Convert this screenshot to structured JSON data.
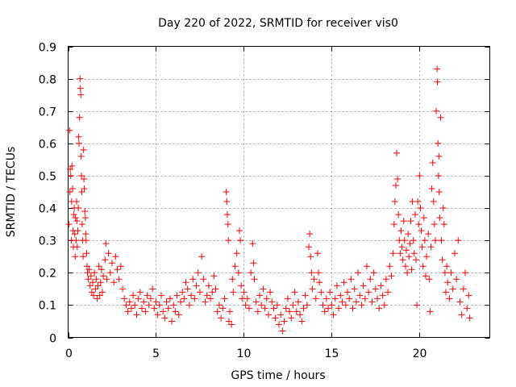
{
  "chart_data": {
    "type": "scatter",
    "title": "Day 220 of 2022, SRMTID for receiver vis0",
    "xlabel": "GPS time / hours",
    "ylabel": "SRMTID / TECUs",
    "xlim": [
      0,
      24
    ],
    "ylim": [
      0,
      0.9
    ],
    "x_ticks": [
      "0",
      "5",
      "10",
      "15",
      "20"
    ],
    "x_tick_values": [
      0,
      5,
      10,
      15,
      20
    ],
    "y_ticks": [
      "0",
      "0.1",
      "0.2",
      "0.3",
      "0.4",
      "0.5",
      "0.6",
      "0.7",
      "0.8",
      "0.9"
    ],
    "y_tick_values": [
      0,
      0.1,
      0.2,
      0.3,
      0.4,
      0.5,
      0.6,
      0.7,
      0.8,
      0.9
    ],
    "grid": true,
    "marker": "plus",
    "series": [
      {
        "name": "vis0",
        "color": "#ff0000",
        "points": [
          [
            0.05,
            0.35
          ],
          [
            0.08,
            0.64
          ],
          [
            0.1,
            0.45
          ],
          [
            0.12,
            0.52
          ],
          [
            0.15,
            0.5
          ],
          [
            0.18,
            0.3
          ],
          [
            0.2,
            0.42
          ],
          [
            0.22,
            0.53
          ],
          [
            0.25,
            0.46
          ],
          [
            0.28,
            0.33
          ],
          [
            0.3,
            0.28
          ],
          [
            0.33,
            0.38
          ],
          [
            0.35,
            0.4
          ],
          [
            0.38,
            0.32
          ],
          [
            0.4,
            0.25
          ],
          [
            0.42,
            0.37
          ],
          [
            0.45,
            0.3
          ],
          [
            0.48,
            0.42
          ],
          [
            0.5,
            0.36
          ],
          [
            0.52,
            0.28
          ],
          [
            0.55,
            0.33
          ],
          [
            0.58,
            0.4
          ],
          [
            0.6,
            0.62
          ],
          [
            0.62,
            0.6
          ],
          [
            0.65,
            0.68
          ],
          [
            0.68,
            0.8
          ],
          [
            0.7,
            0.77
          ],
          [
            0.72,
            0.75
          ],
          [
            0.74,
            0.56
          ],
          [
            0.76,
            0.5
          ],
          [
            0.78,
            0.45
          ],
          [
            0.8,
            0.35
          ],
          [
            0.82,
            0.3
          ],
          [
            0.85,
            0.25
          ],
          [
            0.88,
            0.58
          ],
          [
            0.9,
            0.49
          ],
          [
            0.92,
            0.46
          ],
          [
            0.95,
            0.39
          ],
          [
            0.98,
            0.37
          ],
          [
            1.0,
            0.32
          ],
          [
            1.02,
            0.3
          ],
          [
            1.05,
            0.26
          ],
          [
            1.08,
            0.22
          ],
          [
            1.1,
            0.2
          ],
          [
            1.15,
            0.18
          ],
          [
            1.2,
            0.21
          ],
          [
            1.25,
            0.16
          ],
          [
            1.3,
            0.19
          ],
          [
            1.35,
            0.14
          ],
          [
            1.4,
            0.17
          ],
          [
            1.45,
            0.13
          ],
          [
            1.5,
            0.2
          ],
          [
            1.55,
            0.15
          ],
          [
            1.6,
            0.18
          ],
          [
            1.65,
            0.12
          ],
          [
            1.7,
            0.16
          ],
          [
            1.75,
            0.22
          ],
          [
            1.8,
            0.13
          ],
          [
            1.85,
            0.17
          ],
          [
            1.9,
            0.21
          ],
          [
            1.95,
            0.14
          ],
          [
            2.0,
            0.19
          ],
          [
            2.1,
            0.24
          ],
          [
            2.15,
            0.29
          ],
          [
            2.2,
            0.18
          ],
          [
            2.3,
            0.26
          ],
          [
            2.4,
            0.2
          ],
          [
            2.5,
            0.23
          ],
          [
            2.6,
            0.17
          ],
          [
            2.7,
            0.25
          ],
          [
            2.8,
            0.21
          ],
          [
            2.9,
            0.18
          ],
          [
            3.0,
            0.22
          ],
          [
            3.1,
            0.15
          ],
          [
            3.2,
            0.12
          ],
          [
            3.3,
            0.1
          ],
          [
            3.4,
            0.08
          ],
          [
            3.5,
            0.11
          ],
          [
            3.6,
            0.09
          ],
          [
            3.7,
            0.13
          ],
          [
            3.8,
            0.1
          ],
          [
            3.9,
            0.07
          ],
          [
            4.0,
            0.12
          ],
          [
            4.1,
            0.14
          ],
          [
            4.2,
            0.09
          ],
          [
            4.3,
            0.11
          ],
          [
            4.4,
            0.08
          ],
          [
            4.5,
            0.13
          ],
          [
            4.6,
            0.1
          ],
          [
            4.7,
            0.12
          ],
          [
            4.8,
            0.15
          ],
          [
            4.9,
            0.09
          ],
          [
            5.0,
            0.11
          ],
          [
            5.1,
            0.07
          ],
          [
            5.2,
            0.1
          ],
          [
            5.3,
            0.13
          ],
          [
            5.4,
            0.08
          ],
          [
            5.5,
            0.06
          ],
          [
            5.6,
            0.11
          ],
          [
            5.7,
            0.09
          ],
          [
            5.8,
            0.12
          ],
          [
            5.9,
            0.05
          ],
          [
            6.0,
            0.1
          ],
          [
            6.1,
            0.08
          ],
          [
            6.2,
            0.13
          ],
          [
            6.3,
            0.07
          ],
          [
            6.4,
            0.11
          ],
          [
            6.5,
            0.14
          ],
          [
            6.6,
            0.12
          ],
          [
            6.7,
            0.17
          ],
          [
            6.8,
            0.15
          ],
          [
            6.9,
            0.1
          ],
          [
            7.0,
            0.13
          ],
          [
            7.1,
            0.18
          ],
          [
            7.2,
            0.12
          ],
          [
            7.3,
            0.16
          ],
          [
            7.4,
            0.2
          ],
          [
            7.5,
            0.14
          ],
          [
            7.6,
            0.25
          ],
          [
            7.7,
            0.18
          ],
          [
            7.8,
            0.11
          ],
          [
            7.9,
            0.13
          ],
          [
            8.0,
            0.16
          ],
          [
            8.1,
            0.12
          ],
          [
            8.2,
            0.14
          ],
          [
            8.3,
            0.19
          ],
          [
            8.4,
            0.15
          ],
          [
            8.5,
            0.08
          ],
          [
            8.6,
            0.1
          ],
          [
            8.7,
            0.06
          ],
          [
            8.8,
            0.09
          ],
          [
            8.9,
            0.12
          ],
          [
            9.0,
            0.45
          ],
          [
            9.03,
            0.42
          ],
          [
            9.06,
            0.38
          ],
          [
            9.1,
            0.35
          ],
          [
            9.12,
            0.3
          ],
          [
            9.15,
            0.05
          ],
          [
            9.2,
            0.08
          ],
          [
            9.3,
            0.04
          ],
          [
            9.35,
            0.18
          ],
          [
            9.4,
            0.14
          ],
          [
            9.5,
            0.22
          ],
          [
            9.6,
            0.26
          ],
          [
            9.7,
            0.2
          ],
          [
            9.75,
            0.33
          ],
          [
            9.8,
            0.3
          ],
          [
            9.85,
            0.16
          ],
          [
            9.9,
            0.12
          ],
          [
            10.0,
            0.14
          ],
          [
            10.1,
            0.1
          ],
          [
            10.2,
            0.12
          ],
          [
            10.3,
            0.09
          ],
          [
            10.4,
            0.2
          ],
          [
            10.5,
            0.29
          ],
          [
            10.55,
            0.23
          ],
          [
            10.6,
            0.18
          ],
          [
            10.7,
            0.11
          ],
          [
            10.8,
            0.08
          ],
          [
            10.9,
            0.13
          ],
          [
            11.0,
            0.1
          ],
          [
            11.1,
            0.15
          ],
          [
            11.2,
            0.09
          ],
          [
            11.3,
            0.12
          ],
          [
            11.4,
            0.07
          ],
          [
            11.5,
            0.14
          ],
          [
            11.6,
            0.11
          ],
          [
            11.7,
            0.09
          ],
          [
            11.8,
            0.06
          ],
          [
            11.9,
            0.1
          ],
          [
            12.0,
            0.04
          ],
          [
            12.1,
            0.07
          ],
          [
            12.2,
            0.02
          ],
          [
            12.3,
            0.05
          ],
          [
            12.4,
            0.09
          ],
          [
            12.5,
            0.12
          ],
          [
            12.6,
            0.08
          ],
          [
            12.7,
            0.06
          ],
          [
            12.8,
            0.1
          ],
          [
            12.9,
            0.14
          ],
          [
            13.0,
            0.08
          ],
          [
            13.1,
            0.11
          ],
          [
            13.2,
            0.07
          ],
          [
            13.3,
            0.05
          ],
          [
            13.4,
            0.09
          ],
          [
            13.5,
            0.13
          ],
          [
            13.6,
            0.1
          ],
          [
            13.7,
            0.28
          ],
          [
            13.75,
            0.32
          ],
          [
            13.8,
            0.25
          ],
          [
            13.85,
            0.2
          ],
          [
            13.9,
            0.15
          ],
          [
            14.0,
            0.18
          ],
          [
            14.1,
            0.12
          ],
          [
            14.2,
            0.26
          ],
          [
            14.25,
            0.2
          ],
          [
            14.3,
            0.17
          ],
          [
            14.4,
            0.14
          ],
          [
            14.5,
            0.1
          ],
          [
            14.6,
            0.08
          ],
          [
            14.7,
            0.12
          ],
          [
            14.8,
            0.09
          ],
          [
            14.9,
            0.14
          ],
          [
            15.0,
            0.1
          ],
          [
            15.1,
            0.07
          ],
          [
            15.2,
            0.12
          ],
          [
            15.3,
            0.16
          ],
          [
            15.4,
            0.09
          ],
          [
            15.5,
            0.13
          ],
          [
            15.6,
            0.11
          ],
          [
            15.7,
            0.17
          ],
          [
            15.8,
            0.1
          ],
          [
            15.9,
            0.14
          ],
          [
            16.0,
            0.12
          ],
          [
            16.1,
            0.18
          ],
          [
            16.2,
            0.09
          ],
          [
            16.3,
            0.15
          ],
          [
            16.4,
            0.11
          ],
          [
            16.5,
            0.2
          ],
          [
            16.6,
            0.13
          ],
          [
            16.7,
            0.1
          ],
          [
            16.8,
            0.16
          ],
          [
            16.9,
            0.12
          ],
          [
            17.0,
            0.22
          ],
          [
            17.1,
            0.14
          ],
          [
            17.2,
            0.18
          ],
          [
            17.3,
            0.11
          ],
          [
            17.4,
            0.2
          ],
          [
            17.5,
            0.15
          ],
          [
            17.6,
            0.12
          ],
          [
            17.7,
            0.09
          ],
          [
            17.8,
            0.16
          ],
          [
            17.9,
            0.13
          ],
          [
            18.0,
            0.1
          ],
          [
            18.1,
            0.18
          ],
          [
            18.2,
            0.14
          ],
          [
            18.3,
            0.22
          ],
          [
            18.4,
            0.19
          ],
          [
            18.5,
            0.26
          ],
          [
            18.55,
            0.35
          ],
          [
            18.6,
            0.42
          ],
          [
            18.65,
            0.47
          ],
          [
            18.7,
            0.57
          ],
          [
            18.75,
            0.49
          ],
          [
            18.8,
            0.38
          ],
          [
            18.85,
            0.3
          ],
          [
            18.9,
            0.26
          ],
          [
            18.95,
            0.33
          ],
          [
            19.0,
            0.28
          ],
          [
            19.05,
            0.24
          ],
          [
            19.1,
            0.36
          ],
          [
            19.15,
            0.3
          ],
          [
            19.2,
            0.22
          ],
          [
            19.25,
            0.27
          ],
          [
            19.3,
            0.2
          ],
          [
            19.35,
            0.32
          ],
          [
            19.4,
            0.25
          ],
          [
            19.45,
            0.29
          ],
          [
            19.5,
            0.36
          ],
          [
            19.55,
            0.21
          ],
          [
            19.6,
            0.42
          ],
          [
            19.65,
            0.3
          ],
          [
            19.7,
            0.26
          ],
          [
            19.75,
            0.38
          ],
          [
            19.8,
            0.24
          ],
          [
            19.85,
            0.1
          ],
          [
            19.9,
            0.42
          ],
          [
            19.95,
            0.35
          ],
          [
            20.0,
            0.5
          ],
          [
            20.05,
            0.4
          ],
          [
            20.1,
            0.33
          ],
          [
            20.15,
            0.28
          ],
          [
            20.2,
            0.22
          ],
          [
            20.25,
            0.37
          ],
          [
            20.3,
            0.3
          ],
          [
            20.35,
            0.19
          ],
          [
            20.4,
            0.25
          ],
          [
            20.5,
            0.32
          ],
          [
            20.55,
            0.18
          ],
          [
            20.6,
            0.08
          ],
          [
            20.65,
            0.28
          ],
          [
            20.7,
            0.46
          ],
          [
            20.75,
            0.54
          ],
          [
            20.8,
            0.42
          ],
          [
            20.85,
            0.35
          ],
          [
            20.9,
            0.3
          ],
          [
            20.95,
            0.7
          ],
          [
            21.0,
            0.83
          ],
          [
            21.02,
            0.79
          ],
          [
            21.05,
            0.6
          ],
          [
            21.08,
            0.5
          ],
          [
            21.1,
            0.56
          ],
          [
            21.12,
            0.45
          ],
          [
            21.15,
            0.37
          ],
          [
            21.2,
            0.68
          ],
          [
            21.25,
            0.3
          ],
          [
            21.3,
            0.24
          ],
          [
            21.35,
            0.4
          ],
          [
            21.4,
            0.35
          ],
          [
            21.45,
            0.2
          ],
          [
            21.5,
            0.14
          ],
          [
            21.55,
            0.22
          ],
          [
            21.6,
            0.17
          ],
          [
            21.7,
            0.12
          ],
          [
            21.8,
            0.2
          ],
          [
            21.9,
            0.15
          ],
          [
            22.0,
            0.26
          ],
          [
            22.1,
            0.18
          ],
          [
            22.2,
            0.3
          ],
          [
            22.3,
            0.11
          ],
          [
            22.4,
            0.07
          ],
          [
            22.5,
            0.15
          ],
          [
            22.6,
            0.2
          ],
          [
            22.7,
            0.09
          ],
          [
            22.8,
            0.13
          ],
          [
            22.85,
            0.06
          ]
        ]
      }
    ]
  }
}
